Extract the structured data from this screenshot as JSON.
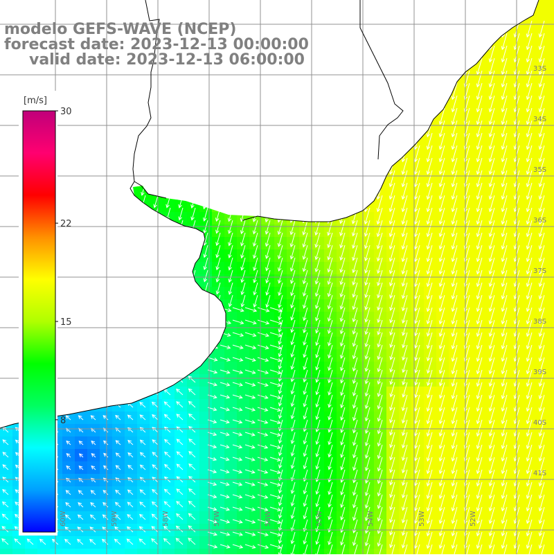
{
  "header": {
    "model": "modelo GEFS-WAVE (NCEP)",
    "forecast": "forecast date: 2023-12-13 00:00:00",
    "valid": "valid date: 2023-12-13 06:00:00"
  },
  "colorbar": {
    "unit": "[m/s]",
    "min": 0,
    "max": 30,
    "ticks": [
      "30",
      "22",
      "15",
      "8"
    ],
    "tick_values": [
      30,
      22,
      15,
      8
    ],
    "stops": [
      "#0000ff",
      "#00a0ff",
      "#00ffff",
      "#00ff60",
      "#00ff00",
      "#b0ff00",
      "#ffff00",
      "#ff9000",
      "#ff0000",
      "#ff0070",
      "#c0007a"
    ]
  },
  "lat_labels": [
    "33S",
    "34S",
    "35S",
    "36S",
    "37S",
    "38S",
    "39S",
    "40S",
    "41S"
  ],
  "lon_labels": [
    "60W",
    "59W",
    "58W",
    "57W",
    "56W",
    "55W",
    "54W",
    "53W",
    "52W"
  ],
  "colors": {
    "land": "#ffffff",
    "grid": "#909090",
    "coast": "#000000",
    "arrow": "#ffffff"
  }
}
